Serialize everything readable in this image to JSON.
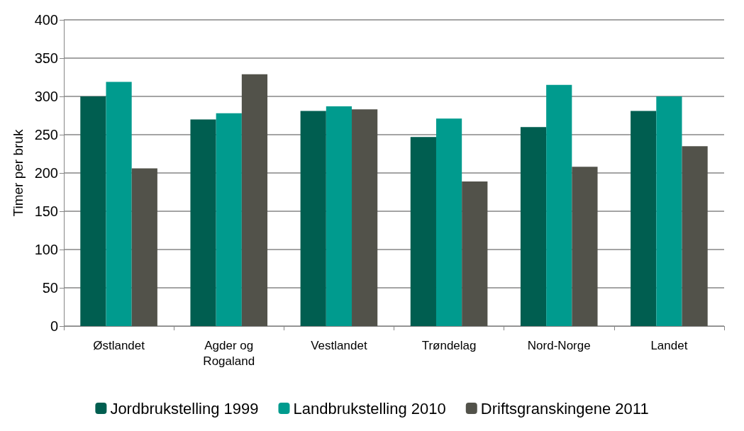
{
  "chart_data": {
    "type": "bar",
    "ylabel": "Timer per bruk",
    "categories": [
      "Østlandet",
      "Agder og\nRogaland",
      "Vestlandet",
      "Trøndelag",
      "Nord-Norge",
      "Landet"
    ],
    "series": [
      {
        "name": "Jordbrukstelling 1999",
        "color": "#005e50",
        "values": [
          300,
          270,
          281,
          247,
          260,
          281
        ]
      },
      {
        "name": "Landbrukstelling 2010",
        "color": "#009b8e",
        "values": [
          319,
          278,
          287,
          271,
          315,
          300
        ]
      },
      {
        "name": "Driftsgranskingene 2011",
        "color": "#52524a",
        "values": [
          206,
          329,
          283,
          189,
          208,
          235
        ]
      }
    ],
    "ylim": [
      0,
      400
    ],
    "yticks": [
      0,
      50,
      100,
      150,
      200,
      250,
      300,
      350,
      400
    ],
    "grid": "y",
    "legend": "bottom"
  }
}
